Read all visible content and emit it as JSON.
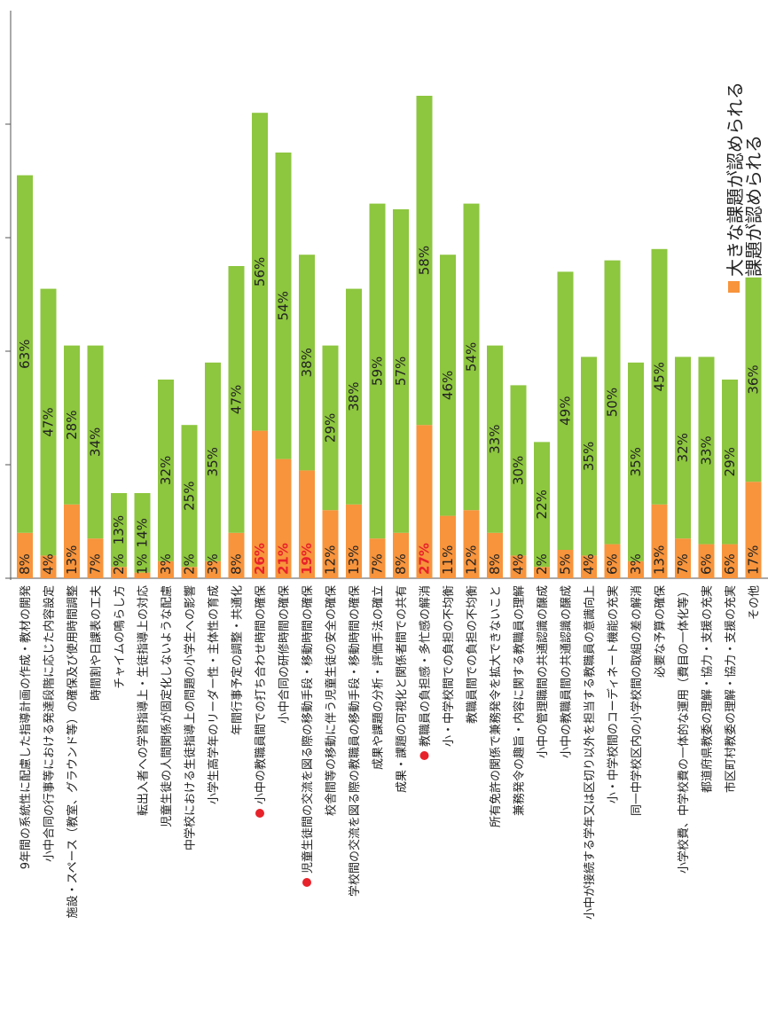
{
  "chart_data": {
    "type": "bar",
    "orientation": "stacked-bar, rotated 90° clockwise",
    "legend": [
      {
        "label": "大きな課題が認められる",
        "color": "#f7943c"
      },
      {
        "label": "課題が認められる",
        "color": "#8dc63f"
      }
    ],
    "categories": [
      "9年間の系統性に配慮した指導計画の作成・教材の開発",
      "小中合同の行事等における発達段階に応じた内容設定",
      "施設・スペース（教室、グラウンド等）の確保及び使用時間調整",
      "時間割や日課表の工夫",
      "チャイムの鳴らし方",
      "転出入者への学習指導上・生徒指導上の対応",
      "児童生徒の人間関係が固定化しないような配慮",
      "中学校における生徒指導上の問題の小学生への影響",
      "小学生高学年のリーダー性・主体性の育成",
      "年間行事予定の調整・共通化",
      "小中の教職員間での打ち合わせ時間の確保",
      "小中合同の研修時間の確保",
      "児童生徒間の交流を図る際の移動手段・移動時間の確保",
      "校舎間等の移動に伴う児童生徒の安全の確保",
      "学校間の交流を図る際の教職員の移動手段・移動時間の確保",
      "成果や課題の分析・評価手法の確立",
      "成果・課題の可視化と関係者間での共有",
      "教職員の負担感・多忙感の解消",
      "小・中学校間での負担の不均衡",
      "教職員間での負担の不均衡",
      "所有免許の関係で兼務発令を拡大できないこと",
      "兼務発令の趣旨・内容に関する教職員の理解",
      "小中の管理職間の共通認識の醸成",
      "小中の教職員間の共通認識の醸成",
      "小中が接続する学年又は区切り以外を担当する教職員の意識向上",
      "小・中学校間のコーディネート機能の充実",
      "同一中学校区内の小学校間の取組の差の解消",
      "必要な予算の確保",
      "小学校費、中学校費の一体的な運用（費目の一体化等）",
      "都道府県教委の理解・協力・支援の充実",
      "市区町村教委の理解・協力・支援の充実",
      "その他"
    ],
    "marked_categories": [
      10,
      12,
      17
    ],
    "series": [
      {
        "name": "大きな課題が認められる",
        "labels": [
          "8%",
          "4%",
          "13%",
          "7%",
          "2%",
          "1%",
          "3%",
          "2%",
          "3%",
          "8%",
          "26%",
          "21%",
          "19%",
          "12%",
          "13%",
          "7%",
          "8%",
          "27%",
          "11%",
          "12%",
          "8%",
          "4%",
          "2%",
          "5%",
          "4%",
          "6%",
          "3%",
          "13%",
          "7%",
          "6%",
          "6%",
          "17%"
        ],
        "values": [
          8,
          4,
          13,
          7,
          2,
          1,
          3,
          2,
          3,
          8,
          26,
          21,
          19,
          12,
          13,
          7,
          8,
          27,
          11,
          12,
          8,
          4,
          2,
          5,
          4,
          6,
          3,
          13,
          7,
          6,
          6,
          17
        ]
      },
      {
        "name": "課題が認められる",
        "labels": [
          "63%",
          "47%",
          "28%",
          "34%",
          "13%",
          "14%",
          "32%",
          "25%",
          "35%",
          "47%",
          "56%",
          "54%",
          "38%",
          "29%",
          "38%",
          "59%",
          "57%",
          "58%",
          "46%",
          "54%",
          "33%",
          "30%",
          "22%",
          "49%",
          "35%",
          "50%",
          "35%",
          "45%",
          "32%",
          "33%",
          "29%",
          "36%"
        ],
        "values": [
          63,
          47,
          28,
          34,
          13,
          14,
          32,
          25,
          35,
          47,
          56,
          54,
          38,
          29,
          38,
          59,
          57,
          58,
          46,
          54,
          33,
          30,
          22,
          49,
          35,
          50,
          35,
          45,
          32,
          33,
          29,
          36
        ]
      }
    ],
    "highlight_labels_red": [
      10,
      11,
      12,
      17
    ],
    "value_axis_max": 85
  }
}
